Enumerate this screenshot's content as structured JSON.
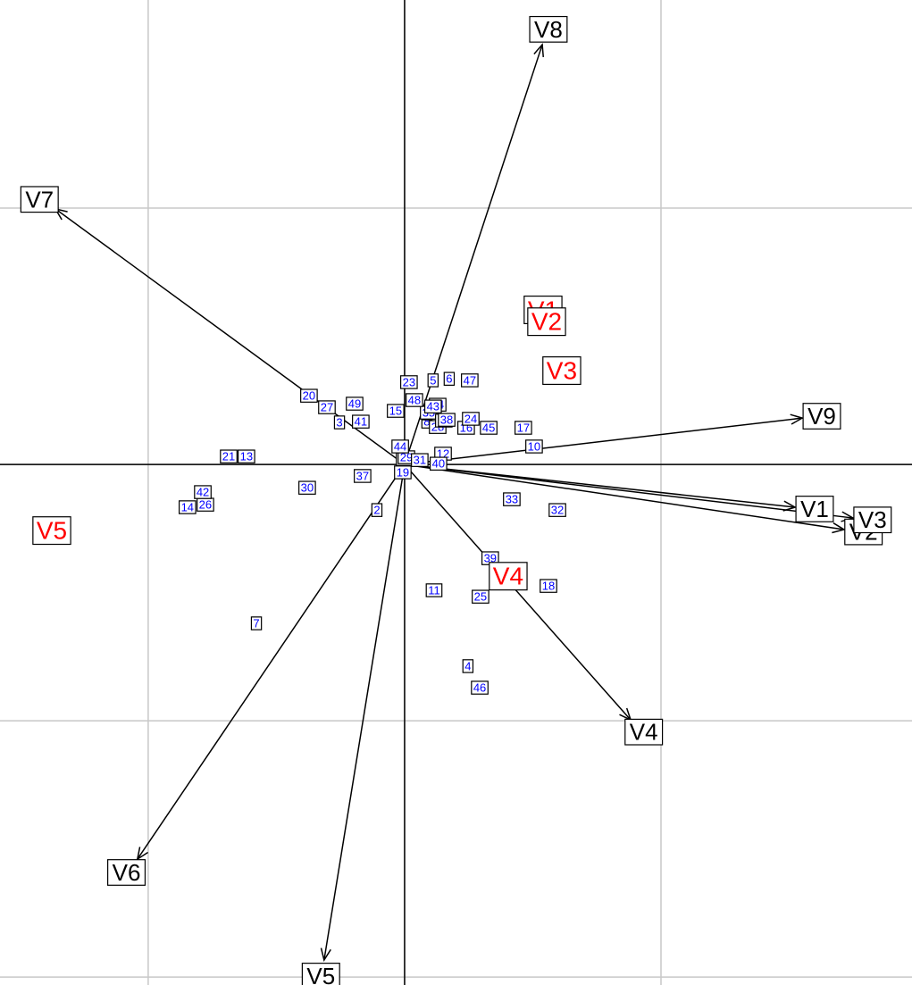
{
  "chart_data": {
    "type": "biplot",
    "xlim": [
      -1.578,
      1.979
    ],
    "ylim": [
      -2.031,
      1.812
    ],
    "xticks": [
      -1,
      0,
      1
    ],
    "yticks": [
      -2,
      -1,
      0,
      1
    ],
    "grid": true,
    "arrows": {
      "color": "#000000",
      "labels": [
        "V1",
        "V2",
        "V3",
        "V4",
        "V5",
        "V6",
        "V7",
        "V8",
        "V9"
      ],
      "x": [
        1.523,
        1.714,
        1.749,
        0.882,
        -0.314,
        -1.042,
        -1.362,
        0.537,
        1.551
      ],
      "y": [
        -0.167,
        -0.254,
        -0.209,
        -0.997,
        -1.934,
        -1.54,
        0.997,
        1.638,
        0.181
      ]
    },
    "groups": {
      "color": "#ff0000",
      "labels": [
        "V1",
        "V2",
        "V3",
        "V4",
        "V5"
      ],
      "x": [
        0.54,
        0.554,
        0.613,
        0.404,
        -1.376
      ],
      "y": [
        0.603,
        0.557,
        0.366,
        -0.436,
        -0.258
      ]
    },
    "points": {
      "color": "#0000ff",
      "labels": [
        "1",
        "2",
        "3",
        "4",
        "5",
        "6",
        "7",
        "8",
        "9",
        "10",
        "11",
        "12",
        "13",
        "14",
        "15",
        "16",
        "17",
        "18",
        "19",
        "20",
        "21",
        "22",
        "23",
        "24",
        "25",
        "26",
        "27",
        "28",
        "29",
        "30",
        "31",
        "32",
        "33",
        "34",
        "35",
        "36",
        "37",
        "38",
        "39",
        "40",
        "41",
        "42",
        "43",
        "44",
        "45",
        "46",
        "47",
        "48",
        "49"
      ],
      "x": [
        0.122,
        -0.108,
        -0.254,
        0.247,
        0.111,
        0.174,
        -0.578,
        0.087,
        0.087,
        0.505,
        0.115,
        0.15,
        -0.617,
        -0.847,
        -0.035,
        0.24,
        0.463,
        0.561,
        -0.007,
        -0.373,
        -0.686,
        0.0,
        0.017,
        0.258,
        0.296,
        -0.777,
        -0.303,
        0.129,
        0.007,
        -0.38,
        0.059,
        0.596,
        0.418,
        0.129,
        0.094,
        0.153,
        -0.164,
        0.164,
        0.334,
        0.132,
        -0.171,
        -0.787,
        0.111,
        -0.017,
        0.328,
        0.293,
        0.254,
        0.038,
        -0.195
      ],
      "y": [
        0.153,
        -0.178,
        0.164,
        -0.787,
        0.328,
        0.334,
        -0.62,
        0.167,
        0.199,
        0.07,
        -0.491,
        0.042,
        0.031,
        -0.167,
        0.209,
        0.143,
        0.143,
        -0.474,
        -0.031,
        0.268,
        0.031,
        0.021,
        0.321,
        0.178,
        -0.516,
        -0.157,
        0.223,
        0.146,
        0.028,
        -0.091,
        0.017,
        -0.178,
        -0.136,
        0.233,
        0.202,
        0.171,
        -0.045,
        0.174,
        -0.366,
        0.003,
        0.167,
        -0.108,
        0.226,
        0.07,
        0.143,
        -0.871,
        0.328,
        0.251,
        0.237
      ]
    }
  }
}
